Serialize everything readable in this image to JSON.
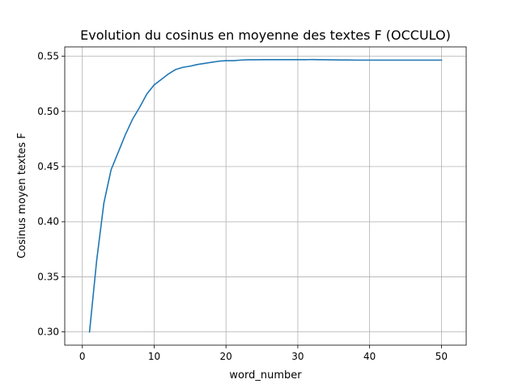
{
  "chart_data": {
    "type": "line",
    "title": "Evolution du cosinus en moyenne des textes F (OCCULO)",
    "xlabel": "word_number",
    "ylabel": "Cosinus moyen textes F",
    "xlim": [
      -2.45,
      53.45
    ],
    "ylim": [
      0.288,
      0.5585
    ],
    "xticks": [
      0,
      10,
      20,
      30,
      40,
      50
    ],
    "yticks": [
      0.3,
      0.35,
      0.4,
      0.45,
      0.5,
      0.55
    ],
    "ytick_labels": [
      "0.30",
      "0.35",
      "0.40",
      "0.45",
      "0.50",
      "0.55"
    ],
    "grid": true,
    "series_color": "#1f77b4",
    "series": [
      {
        "x": [
          1,
          2,
          3,
          4,
          5,
          6,
          7,
          8,
          9,
          10,
          11,
          12,
          13,
          14,
          15,
          16,
          17,
          18,
          19,
          20,
          21,
          22,
          23,
          24,
          25,
          26,
          27,
          28,
          29,
          30,
          31,
          32,
          33,
          34,
          35,
          36,
          37,
          38,
          39,
          40,
          41,
          42,
          43,
          44,
          45,
          46,
          47,
          48,
          49,
          50
        ],
        "values": [
          0.3,
          0.365,
          0.417,
          0.447,
          0.463,
          0.479,
          0.493,
          0.504,
          0.516,
          0.524,
          0.529,
          0.534,
          0.538,
          0.54,
          0.541,
          0.5425,
          0.5435,
          0.5445,
          0.5455,
          0.546,
          0.546,
          0.5465,
          0.5468,
          0.5468,
          0.5469,
          0.5469,
          0.5469,
          0.5469,
          0.5469,
          0.5469,
          0.5469,
          0.547,
          0.5469,
          0.5468,
          0.5467,
          0.5466,
          0.5466,
          0.5465,
          0.5465,
          0.5465,
          0.5465,
          0.5465,
          0.5465,
          0.5465,
          0.5465,
          0.5465,
          0.5465,
          0.5465,
          0.5465,
          0.5465
        ]
      }
    ]
  }
}
